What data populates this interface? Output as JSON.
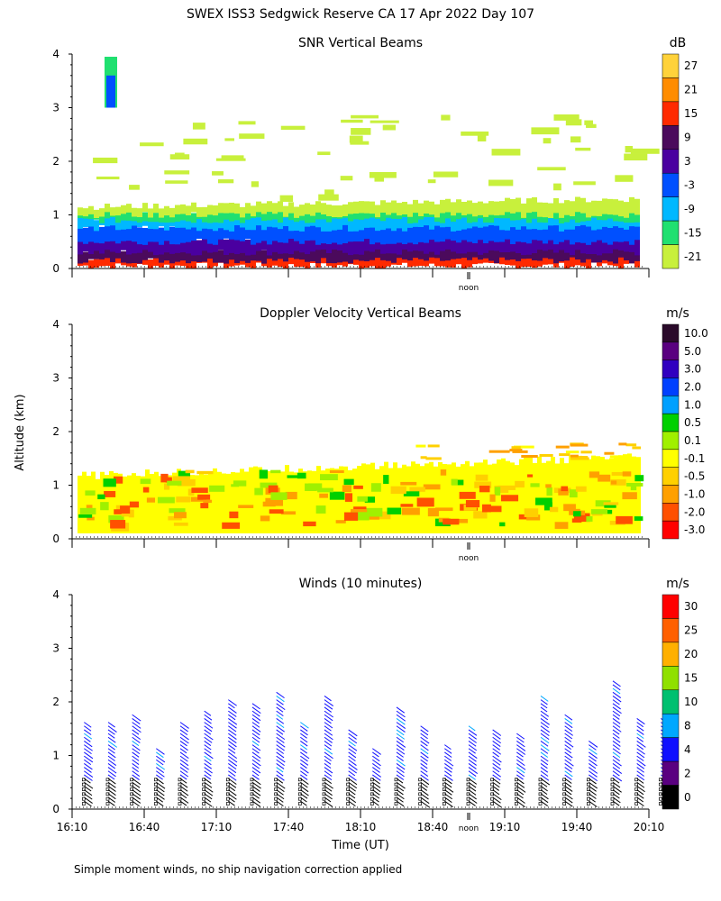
{
  "figure": {
    "main_title": "SWEX ISS3 Sedgwick Reserve CA  17 Apr 2022 Day 107",
    "y_axis_label": "Altitude (km)",
    "x_axis_label": "Time (UT)",
    "footnote": "Simple moment winds, no ship navigation correction applied",
    "noon_label": "noon"
  },
  "chart_data": [
    {
      "type": "heatmap",
      "title": "SNR Vertical Beams",
      "colorbar_unit": "dB",
      "colorbar_labels": [
        "27",
        "21",
        "15",
        "9",
        "3",
        "-3",
        "-9",
        "-15",
        "-21"
      ],
      "colorbar_colors": [
        "#ffd23a",
        "#ff8c00",
        "#ff2a00",
        "#4b0a5c",
        "#4a00a0",
        "#0050ff",
        "#00b8ff",
        "#20e070",
        "#c8f03c"
      ],
      "y_ticks": [
        "0",
        "1",
        "2",
        "3",
        "4"
      ],
      "ylim": [
        0,
        4
      ],
      "xlim": [
        "16:10",
        "20:10"
      ],
      "grid": false
    },
    {
      "type": "heatmap",
      "title": "Doppler Velocity Vertical Beams",
      "colorbar_unit": "m/s",
      "colorbar_labels": [
        "10.0",
        "5.0",
        "3.0",
        "2.0",
        "1.0",
        "0.5",
        "0.1",
        "-0.1",
        "-0.5",
        "-1.0",
        "-2.0",
        "-3.0"
      ],
      "colorbar_colors": [
        "#2a0a2a",
        "#5a0080",
        "#3000c0",
        "#0040ff",
        "#00a0ff",
        "#00d000",
        "#a0f000",
        "#ffff00",
        "#ffd000",
        "#ffa000",
        "#ff5000",
        "#ff0000"
      ],
      "y_ticks": [
        "0",
        "1",
        "2",
        "3",
        "4"
      ],
      "ylim": [
        0,
        4
      ],
      "xlim": [
        "16:10",
        "20:10"
      ],
      "grid": false
    },
    {
      "type": "scatter",
      "title": "Winds (10 minutes)",
      "colorbar_unit": "m/s",
      "colorbar_labels": [
        "30",
        "25",
        "20",
        "15",
        "10",
        "8",
        "4",
        "2",
        "0"
      ],
      "colorbar_colors": [
        "#ff0000",
        "#ff6000",
        "#ffb000",
        "#90e000",
        "#00c070",
        "#00a8ff",
        "#1010ff",
        "#5a0080",
        "#000000"
      ],
      "y_ticks": [
        "0",
        "1",
        "2",
        "3",
        "4"
      ],
      "x_ticks": [
        "16:10",
        "16:40",
        "17:10",
        "17:40",
        "18:10",
        "18:40",
        "19:10",
        "19:40",
        "20:10"
      ],
      "ylim": [
        0,
        4
      ],
      "xlim": [
        "16:10",
        "20:10"
      ],
      "grid": false
    }
  ]
}
